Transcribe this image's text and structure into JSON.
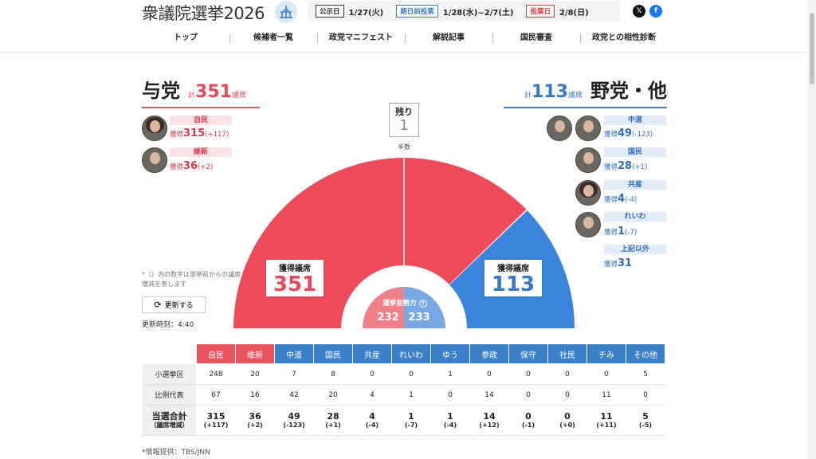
{
  "header": {
    "site_title": "衆議院選挙2026",
    "schedule": [
      {
        "label": "公示日",
        "date": "1/27(火)",
        "color": "#333333"
      },
      {
        "label": "期日前投票",
        "date": "1/28(水)~2/7(土)",
        "color": "#3f7cc9"
      },
      {
        "label": "投票日",
        "date": "2/8(日)",
        "color": "#d9383a"
      }
    ],
    "social": {
      "x_icon": "x-icon",
      "facebook_icon": "facebook-icon"
    }
  },
  "nav": [
    "トップ",
    "候補者一覧",
    "政党マニフェスト",
    "解説記事",
    "国民審査",
    "政党との相性診断"
  ],
  "ruling": {
    "name": "与党",
    "total_prefix": "計",
    "total": "351",
    "unit": "議席",
    "parties": [
      {
        "name": "自民",
        "prefix": "獲得",
        "seats": "315",
        "change": "(+117)"
      },
      {
        "name": "維新",
        "prefix": "獲得",
        "seats": "36",
        "change": "(+2)"
      }
    ]
  },
  "opposition": {
    "name": "野党・他",
    "total_prefix": "計",
    "total": "113",
    "unit": "議席",
    "parties": [
      {
        "name": "中道",
        "prefix": "獲得",
        "seats": "49",
        "change": "(-123)"
      },
      {
        "name": "国民",
        "prefix": "獲得",
        "seats": "28",
        "change": "(+1)"
      },
      {
        "name": "共産",
        "prefix": "獲得",
        "seats": "4",
        "change": "(-4)"
      },
      {
        "name": "れいわ",
        "prefix": "獲得",
        "seats": "1",
        "change": "(-7)"
      },
      {
        "name": "上記以外",
        "prefix": "獲得",
        "seats": "31",
        "change": ""
      }
    ]
  },
  "remaining": {
    "label": "残り",
    "value": "1"
  },
  "majority_label": "半数",
  "chart_data": {
    "type": "half-donut",
    "total_seats": 465,
    "segments": [
      {
        "name": "与党",
        "value": 351,
        "color": "#ee4b5a"
      },
      {
        "name": "残り",
        "value": 1,
        "color": "#ffffff"
      },
      {
        "name": "野党・他",
        "value": 113,
        "color": "#3b84dc"
      }
    ],
    "pre_election": {
      "label": "選挙前勢力",
      "ruling": 232,
      "opposition": 233,
      "ruling_color": "#ef7f89",
      "opposition_color": "#78a8e4"
    }
  },
  "seat_boxes": {
    "ruling": {
      "label": "獲得議席",
      "value": "351"
    },
    "opposition": {
      "label": "獲得議席",
      "value": "113"
    }
  },
  "pre_election_label": "選挙前勢力",
  "note": "*（）内の数字は選挙前からの議席増減を表します",
  "refresh_label": "更新する",
  "update_time": "更新時刻：4:40",
  "table": {
    "columns": [
      {
        "name": "自民",
        "group": "ruling"
      },
      {
        "name": "維新",
        "group": "ruling"
      },
      {
        "name": "中道",
        "group": "opposition"
      },
      {
        "name": "国民",
        "group": "opposition"
      },
      {
        "name": "共産",
        "group": "opposition"
      },
      {
        "name": "れいわ",
        "group": "opposition"
      },
      {
        "name": "ゆう",
        "group": "opposition"
      },
      {
        "name": "参政",
        "group": "opposition"
      },
      {
        "name": "保守",
        "group": "opposition"
      },
      {
        "name": "社民",
        "group": "opposition"
      },
      {
        "name": "チみ",
        "group": "opposition"
      },
      {
        "name": "その他",
        "group": "opposition"
      }
    ],
    "rows": [
      {
        "label": "小選挙区",
        "values": [
          "248",
          "20",
          "7",
          "8",
          "0",
          "0",
          "1",
          "0",
          "0",
          "0",
          "0",
          "5"
        ]
      },
      {
        "label": "比例代表",
        "values": [
          "67",
          "16",
          "42",
          "20",
          "4",
          "1",
          "0",
          "14",
          "0",
          "0",
          "11",
          "0"
        ]
      }
    ],
    "total_label": "当選合計",
    "total_sublabel": "（議席増減）",
    "totals": [
      "315",
      "36",
      "49",
      "28",
      "4",
      "1",
      "1",
      "14",
      "0",
      "0",
      "11",
      "5"
    ],
    "changes": [
      "(+117)",
      "(+2)",
      "(-123)",
      "(+1)",
      "(-4)",
      "(-7)",
      "(-4)",
      "(+12)",
      "(-1)",
      "(+0)",
      "(+11)",
      "(-5)"
    ]
  },
  "source": "*情報提供：TBS/JNN"
}
